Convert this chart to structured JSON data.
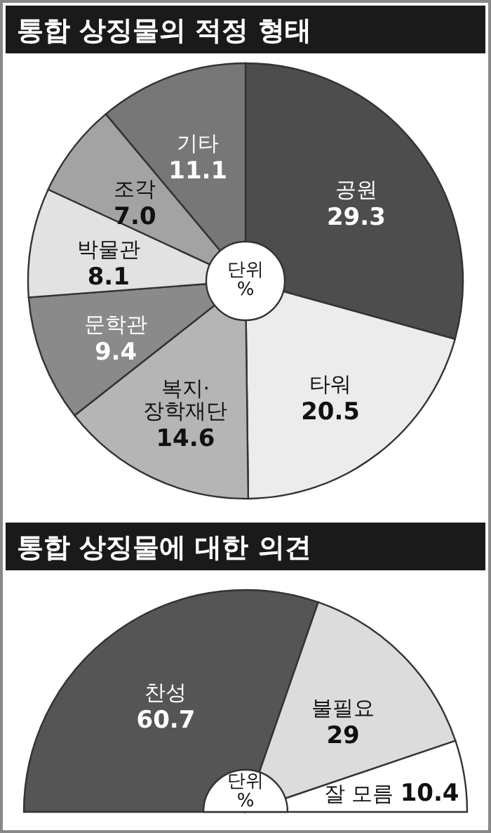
{
  "chart_data": [
    {
      "type": "pie",
      "title": "통합 상징물의 적정 형태",
      "categories": [
        "공원",
        "타워",
        "복지·장학재단",
        "문학관",
        "박물관",
        "조각",
        "기타"
      ],
      "values": [
        29.3,
        20.5,
        14.6,
        9.4,
        8.1,
        7.0,
        11.1
      ],
      "value_labels": [
        "29.3",
        "20.5",
        "14.6",
        "9.4",
        "8.1",
        "7.0",
        "11.1"
      ],
      "colors": [
        "#4d4d4d",
        "#ececec",
        "#b5b5b5",
        "#8a8a8a",
        "#e2e2e2",
        "#a3a3a3",
        "#777777"
      ],
      "annotations": [
        "단위\n%"
      ]
    },
    {
      "type": "pie",
      "title": "통합 상징물에 대한 의견",
      "categories": [
        "찬성",
        "불필요",
        "잘 모름"
      ],
      "values": [
        60.7,
        29,
        10.4
      ],
      "value_labels": [
        "60.7",
        "29",
        "10.4"
      ],
      "colors": [
        "#555555",
        "#dcdcdc",
        "#ffffff"
      ],
      "annotations": [
        "단위\n%"
      ]
    }
  ]
}
